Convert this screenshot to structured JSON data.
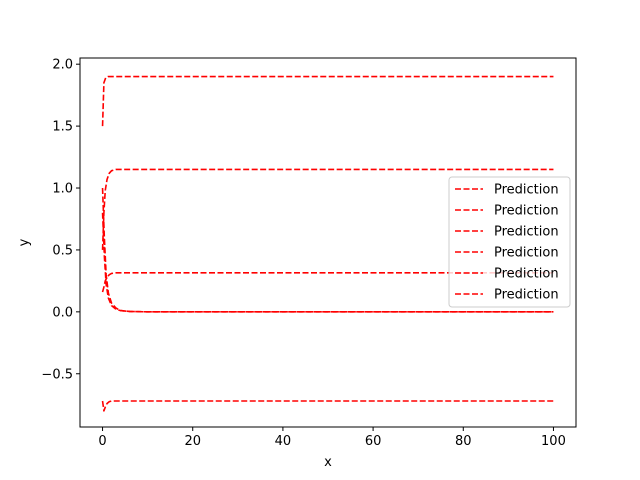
{
  "chart_data": {
    "type": "line",
    "title": "",
    "xlabel": "x",
    "ylabel": "y",
    "xlim": [
      -5,
      105
    ],
    "ylim": [
      -0.93,
      2.05
    ],
    "xticks": [
      0,
      20,
      40,
      60,
      80,
      100
    ],
    "yticks": [
      -0.5,
      0.0,
      0.5,
      1.0,
      1.5,
      2.0
    ],
    "xtick_labels": [
      "0",
      "20",
      "40",
      "60",
      "80",
      "100"
    ],
    "ytick_labels": [
      "−0.5",
      "0.0",
      "0.5",
      "1.0",
      "1.5",
      "2.0"
    ],
    "grid": false,
    "legend_position": "center-right",
    "line_color": "#ff0000",
    "line_style": "dashed",
    "series": [
      {
        "name": "Prediction",
        "x": [
          0,
          0.3,
          0.7,
          1.2,
          2,
          4,
          100
        ],
        "y": [
          1.5,
          1.85,
          1.89,
          1.9,
          1.9,
          1.9,
          1.9
        ]
      },
      {
        "name": "Prediction",
        "x": [
          0,
          0.3,
          0.6,
          1,
          1.5,
          2,
          3,
          5,
          100
        ],
        "y": [
          0.5,
          0.8,
          0.98,
          1.07,
          1.12,
          1.14,
          1.15,
          1.15,
          1.15
        ]
      },
      {
        "name": "Prediction",
        "x": [
          0,
          0.3,
          0.6,
          1,
          1.5,
          2,
          3,
          100
        ],
        "y": [
          0.16,
          0.2,
          0.25,
          0.28,
          0.3,
          0.31,
          0.315,
          0.315
        ]
      },
      {
        "name": "Prediction",
        "x": [
          0,
          0.4,
          0.8,
          1.3,
          2,
          3,
          4,
          6,
          10,
          100
        ],
        "y": [
          1.0,
          0.6,
          0.3,
          0.15,
          0.07,
          0.03,
          0.01,
          0.003,
          0.0,
          0.0
        ]
      },
      {
        "name": "Prediction",
        "x": [
          0,
          0.4,
          0.8,
          1.3,
          2,
          3,
          4,
          6,
          10,
          100
        ],
        "y": [
          0.8,
          0.45,
          0.22,
          0.11,
          0.05,
          0.02,
          0.01,
          0.003,
          0.0,
          0.0
        ]
      },
      {
        "name": "Prediction",
        "x": [
          0,
          0.3,
          0.6,
          1,
          1.5,
          2,
          3,
          100
        ],
        "y": [
          -0.72,
          -0.8,
          -0.77,
          -0.74,
          -0.725,
          -0.72,
          -0.72,
          -0.72
        ]
      }
    ]
  }
}
